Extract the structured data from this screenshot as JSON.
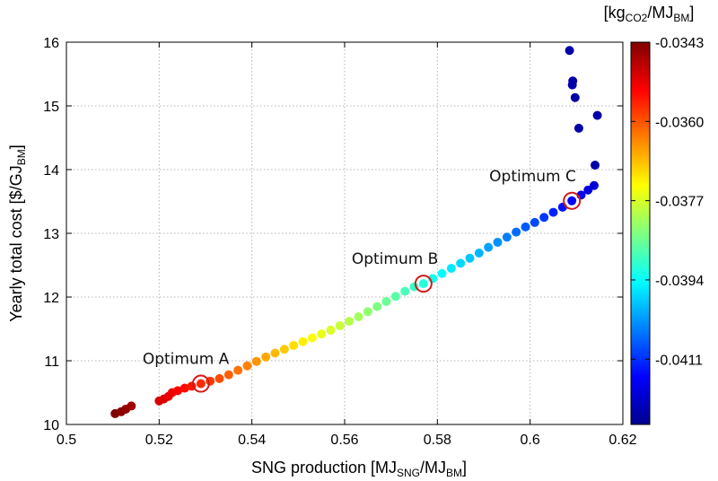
{
  "chart_data": {
    "type": "scatter",
    "xlabel": "SNG production [MJ",
    "xlabel_sub1": "SNG",
    "xlabel_mid": "/MJ",
    "xlabel_sub2": "BM",
    "xlabel_end": "]",
    "ylabel": "Yearly total cost  [$/GJ",
    "ylabel_sub": "BM",
    "ylabel_end": "]",
    "colorbar_label": "[kg",
    "colorbar_label_sub1": "CO2",
    "colorbar_label_mid": "/MJ",
    "colorbar_label_sub2": "BM",
    "colorbar_label_end": "]",
    "xlim": [
      0.5,
      0.62
    ],
    "ylim": [
      10,
      16
    ],
    "x_ticks": [
      "0.5",
      "0.52",
      "0.54",
      "0.56",
      "0.58",
      "0.6",
      "0.62"
    ],
    "y_ticks": [
      "10",
      "11",
      "12",
      "13",
      "14",
      "15",
      "16"
    ],
    "colorbar_ticks": [
      "-0.0343",
      "-0.0360",
      "-0.0377",
      "-0.0394",
      "-0.0411"
    ],
    "colorbar_range": [
      -0.0425,
      -0.0343
    ],
    "grid": true,
    "colormap": "jet",
    "points": [
      {
        "x": 0.5105,
        "y": 10.17
      },
      {
        "x": 0.5118,
        "y": 10.2
      },
      {
        "x": 0.5128,
        "y": 10.24
      },
      {
        "x": 0.514,
        "y": 10.29
      },
      {
        "x": 0.52,
        "y": 10.37
      },
      {
        "x": 0.521,
        "y": 10.4
      },
      {
        "x": 0.522,
        "y": 10.44
      },
      {
        "x": 0.5228,
        "y": 10.5
      },
      {
        "x": 0.524,
        "y": 10.53
      },
      {
        "x": 0.5255,
        "y": 10.57
      },
      {
        "x": 0.527,
        "y": 10.6
      },
      {
        "x": 0.529,
        "y": 10.64
      },
      {
        "x": 0.531,
        "y": 10.68
      },
      {
        "x": 0.533,
        "y": 10.72
      },
      {
        "x": 0.535,
        "y": 10.78
      },
      {
        "x": 0.537,
        "y": 10.85
      },
      {
        "x": 0.539,
        "y": 10.92
      },
      {
        "x": 0.541,
        "y": 10.99
      },
      {
        "x": 0.543,
        "y": 11.06
      },
      {
        "x": 0.545,
        "y": 11.12
      },
      {
        "x": 0.547,
        "y": 11.18
      },
      {
        "x": 0.549,
        "y": 11.24
      },
      {
        "x": 0.551,
        "y": 11.3
      },
      {
        "x": 0.553,
        "y": 11.36
      },
      {
        "x": 0.555,
        "y": 11.42
      },
      {
        "x": 0.557,
        "y": 11.48
      },
      {
        "x": 0.559,
        "y": 11.55
      },
      {
        "x": 0.561,
        "y": 11.62
      },
      {
        "x": 0.563,
        "y": 11.69
      },
      {
        "x": 0.565,
        "y": 11.77
      },
      {
        "x": 0.567,
        "y": 11.85
      },
      {
        "x": 0.569,
        "y": 11.93
      },
      {
        "x": 0.571,
        "y": 12.01
      },
      {
        "x": 0.573,
        "y": 12.09
      },
      {
        "x": 0.575,
        "y": 12.16
      },
      {
        "x": 0.577,
        "y": 12.21
      },
      {
        "x": 0.579,
        "y": 12.29
      },
      {
        "x": 0.581,
        "y": 12.37
      },
      {
        "x": 0.583,
        "y": 12.45
      },
      {
        "x": 0.585,
        "y": 12.53
      },
      {
        "x": 0.587,
        "y": 12.61
      },
      {
        "x": 0.589,
        "y": 12.69
      },
      {
        "x": 0.591,
        "y": 12.78
      },
      {
        "x": 0.593,
        "y": 12.86
      },
      {
        "x": 0.595,
        "y": 12.94
      },
      {
        "x": 0.597,
        "y": 13.02
      },
      {
        "x": 0.599,
        "y": 13.1
      },
      {
        "x": 0.601,
        "y": 13.17
      },
      {
        "x": 0.603,
        "y": 13.25
      },
      {
        "x": 0.605,
        "y": 13.33
      },
      {
        "x": 0.607,
        "y": 13.41
      },
      {
        "x": 0.609,
        "y": 13.51
      },
      {
        "x": 0.611,
        "y": 13.6
      },
      {
        "x": 0.6125,
        "y": 13.68
      },
      {
        "x": 0.6138,
        "y": 13.75
      },
      {
        "x": 0.614,
        "y": 14.07
      },
      {
        "x": 0.6145,
        "y": 14.85
      },
      {
        "x": 0.6105,
        "y": 14.65
      },
      {
        "x": 0.6097,
        "y": 15.13
      },
      {
        "x": 0.6091,
        "y": 15.33
      },
      {
        "x": 0.6092,
        "y": 15.39
      },
      {
        "x": 0.6085,
        "y": 15.87
      }
    ],
    "annotations": [
      {
        "label": "Optimum A",
        "x": 0.529,
        "y": 10.64
      },
      {
        "label": "Optimum B",
        "x": 0.577,
        "y": 12.21
      },
      {
        "label": "Optimum C",
        "x": 0.609,
        "y": 13.51
      }
    ],
    "marker_color": "#d11a1a",
    "grid_color": "#b5b5b5"
  }
}
